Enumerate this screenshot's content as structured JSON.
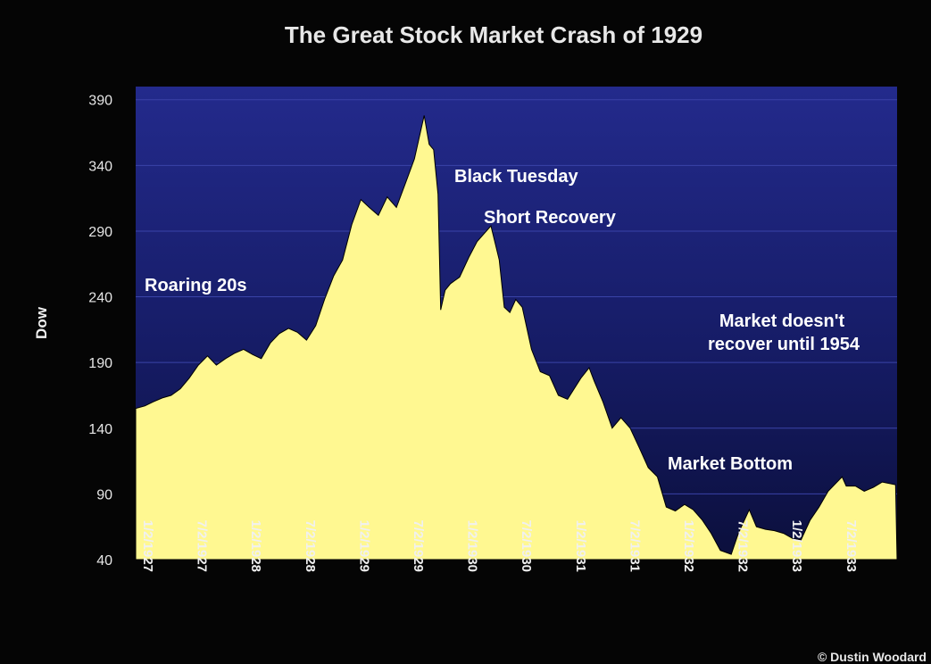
{
  "chart_data": {
    "type": "area",
    "title": "The Great Stock Market Crash of 1929",
    "ylabel": "Dow",
    "xlabel": "",
    "ylim": [
      40,
      400
    ],
    "yticks": [
      40,
      90,
      140,
      190,
      240,
      290,
      340,
      390
    ],
    "x_tick_labels": [
      "1/2/1927",
      "7/2/1927",
      "1/2/1928",
      "7/2/1928",
      "1/2/1929",
      "7/2/1929",
      "1/2/1930",
      "7/2/1930",
      "1/2/1931",
      "7/2/1931",
      "1/2/1932",
      "7/2/1932",
      "1/2/1933",
      "7/2/1933"
    ],
    "x_range": [
      "1927-01-01",
      "1934-01-20"
    ],
    "grid": "horizontal",
    "fill_color": "#fff891",
    "background_top": "#232a8c",
    "background_bottom": "#0b0f3c",
    "series": [
      {
        "x": [
          "1927-01-01",
          "1927-02-01",
          "1927-03-01",
          "1927-04-01",
          "1927-05-01",
          "1927-06-01",
          "1927-07-01",
          "1927-08-01",
          "1927-09-01",
          "1927-10-01",
          "1927-11-01",
          "1927-12-01",
          "1928-01-01",
          "1928-02-01",
          "1928-03-01",
          "1928-04-01",
          "1928-05-01",
          "1928-06-01",
          "1928-07-01",
          "1928-08-01",
          "1928-09-01",
          "1928-10-01",
          "1928-11-01",
          "1928-12-01",
          "1929-01-01",
          "1929-02-01",
          "1929-03-01",
          "1929-04-01",
          "1929-05-01",
          "1929-06-01",
          "1929-07-01",
          "1929-08-01",
          "1929-09-03",
          "1929-09-20",
          "1929-10-05",
          "1929-10-20",
          "1929-10-29",
          "1929-11-13",
          "1929-12-01",
          "1930-01-01",
          "1930-02-01",
          "1930-03-01",
          "1930-04-17",
          "1930-05-15",
          "1930-06-01",
          "1930-06-20",
          "1930-07-10",
          "1930-08-01",
          "1930-09-01",
          "1930-10-01",
          "1930-11-01",
          "1930-12-01",
          "1931-01-01",
          "1931-02-15",
          "1931-03-15",
          "1931-04-01",
          "1931-05-01",
          "1931-06-01",
          "1931-07-01",
          "1931-08-01",
          "1931-09-01",
          "1931-10-01",
          "1931-11-01",
          "1931-12-01",
          "1932-01-01",
          "1932-02-01",
          "1932-03-01",
          "1932-04-01",
          "1932-05-01",
          "1932-06-01",
          "1932-07-08",
          "1932-08-01",
          "1932-09-07",
          "1932-10-01",
          "1932-11-01",
          "1932-12-01",
          "1933-01-01",
          "1933-02-01",
          "1933-03-01",
          "1933-04-01",
          "1933-05-01",
          "1933-06-01",
          "1933-07-18",
          "1933-08-01",
          "1933-09-01",
          "1933-10-01",
          "1933-11-01",
          "1933-12-01",
          "1934-01-15"
        ],
        "values": [
          155,
          157,
          160,
          163,
          165,
          170,
          178,
          188,
          195,
          188,
          193,
          197,
          200,
          196,
          193,
          205,
          212,
          216,
          213,
          207,
          218,
          238,
          256,
          268,
          295,
          314,
          308,
          302,
          316,
          308,
          326,
          345,
          378,
          356,
          352,
          318,
          230,
          245,
          250,
          255,
          270,
          282,
          294,
          268,
          232,
          228,
          238,
          232,
          200,
          183,
          180,
          165,
          162,
          178,
          186,
          176,
          160,
          140,
          148,
          140,
          125,
          110,
          103,
          80,
          77,
          82,
          78,
          70,
          60,
          47,
          44,
          60,
          78,
          65,
          63,
          62,
          60,
          56,
          55,
          70,
          80,
          92,
          103,
          96,
          96,
          92,
          95,
          99,
          97
        ]
      }
    ],
    "annotations": [
      "Roaring 20s",
      "Black Tuesday",
      "Short Recovery",
      "Market doesn't",
      "recover until 1954",
      "Market Bottom"
    ],
    "credit": "© Dustin Woodard"
  }
}
